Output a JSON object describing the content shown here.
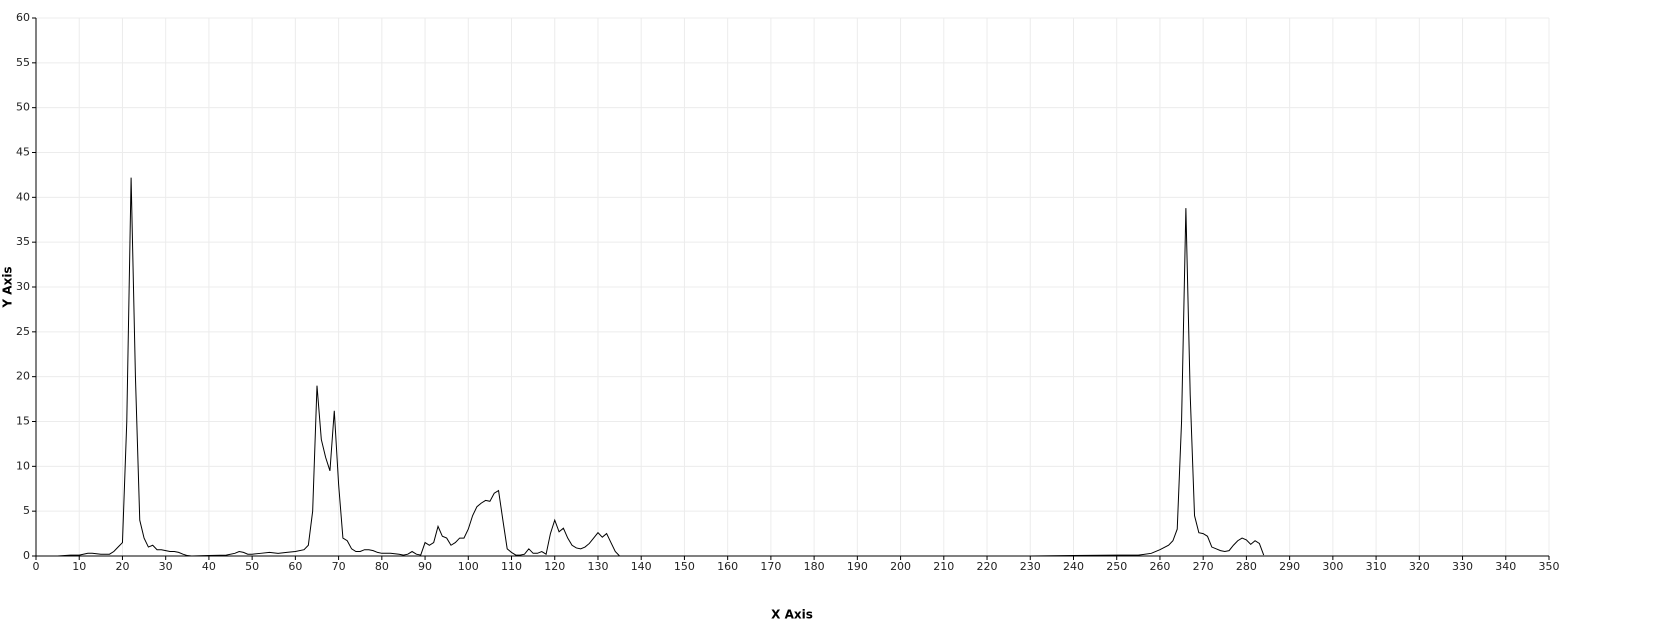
{
  "chart_data": {
    "type": "line",
    "x_label": "X Axis",
    "y_label": "Y Axis",
    "x": [
      0,
      5,
      8,
      10,
      12,
      13,
      15,
      17,
      18,
      19,
      20,
      21,
      22,
      23,
      24,
      25,
      26,
      27,
      28,
      29,
      30,
      31,
      32,
      33,
      34,
      35,
      36,
      40,
      44,
      46,
      47,
      48,
      49,
      50,
      52,
      54,
      56,
      58,
      60,
      62,
      63,
      64,
      65,
      66,
      67,
      68,
      69,
      70,
      71,
      72,
      73,
      74,
      75,
      76,
      77,
      78,
      79,
      80,
      82,
      84,
      85,
      86,
      87,
      88,
      89,
      90,
      91,
      92,
      93,
      94,
      95,
      96,
      97,
      98,
      99,
      100,
      101,
      102,
      103,
      104,
      105,
      106,
      107,
      108,
      109,
      110,
      111,
      112,
      113,
      114,
      115,
      116,
      117,
      118,
      119,
      120,
      121,
      122,
      123,
      124,
      125,
      126,
      127,
      128,
      129,
      130,
      131,
      132,
      133,
      134,
      135,
      150,
      200,
      230,
      240,
      250,
      255,
      258,
      260,
      262,
      263,
      264,
      265,
      266,
      267,
      268,
      269,
      270,
      271,
      272,
      273,
      274,
      275,
      276,
      277,
      278,
      279,
      280,
      281,
      282,
      283,
      284
    ],
    "values": [
      0,
      0,
      0.1,
      0.1,
      0.3,
      0.3,
      0.2,
      0.2,
      0.5,
      1.0,
      1.5,
      15,
      42.2,
      20,
      4,
      2,
      1,
      1.2,
      0.7,
      0.7,
      0.6,
      0.5,
      0.5,
      0.4,
      0.2,
      0.05,
      0,
      0.05,
      0.1,
      0.3,
      0.5,
      0.4,
      0.2,
      0.2,
      0.3,
      0.4,
      0.3,
      0.4,
      0.5,
      0.7,
      1.2,
      5,
      19,
      13,
      11,
      9.5,
      16.2,
      8,
      2,
      1.7,
      0.8,
      0.5,
      0.5,
      0.7,
      0.7,
      0.6,
      0.4,
      0.3,
      0.3,
      0.2,
      0.1,
      0.2,
      0.5,
      0.2,
      0.1,
      1.5,
      1.2,
      1.5,
      3.3,
      2.2,
      2.0,
      1.2,
      1.5,
      2,
      2,
      3,
      4.5,
      5.5,
      5.9,
      6.2,
      6.1,
      7,
      7.3,
      4,
      0.8,
      0.4,
      0.1,
      0.1,
      0.2,
      0.8,
      0.3,
      0.3,
      0.5,
      0.2,
      2.5,
      4,
      2.7,
      3.1,
      2,
      1.2,
      0.9,
      0.8,
      1,
      1.4,
      2,
      2.6,
      2.1,
      2.5,
      1.5,
      0.5,
      0,
      0,
      0,
      0,
      0.05,
      0.1,
      0.1,
      0.3,
      0.7,
      1.2,
      1.7,
      3,
      15,
      38.8,
      18,
      4.5,
      2.6,
      2.5,
      2.2,
      1,
      0.8,
      0.6,
      0.5,
      0.6,
      1.2,
      1.7,
      2,
      1.8,
      1.3,
      1.7,
      1.4,
      0.1
    ],
    "color": "#000000",
    "xlim": [
      0,
      350
    ],
    "ylim": [
      0,
      60
    ],
    "xticks": [
      0,
      10,
      20,
      30,
      40,
      50,
      60,
      70,
      80,
      90,
      100,
      110,
      120,
      130,
      140,
      150,
      160,
      170,
      180,
      190,
      200,
      210,
      220,
      230,
      240,
      250,
      260,
      270,
      280,
      290,
      300,
      310,
      320,
      330,
      340,
      350
    ],
    "yticks": [
      0,
      5,
      10,
      15,
      20,
      25,
      30,
      35,
      40,
      45,
      50,
      55,
      60
    ],
    "grid": true
  }
}
